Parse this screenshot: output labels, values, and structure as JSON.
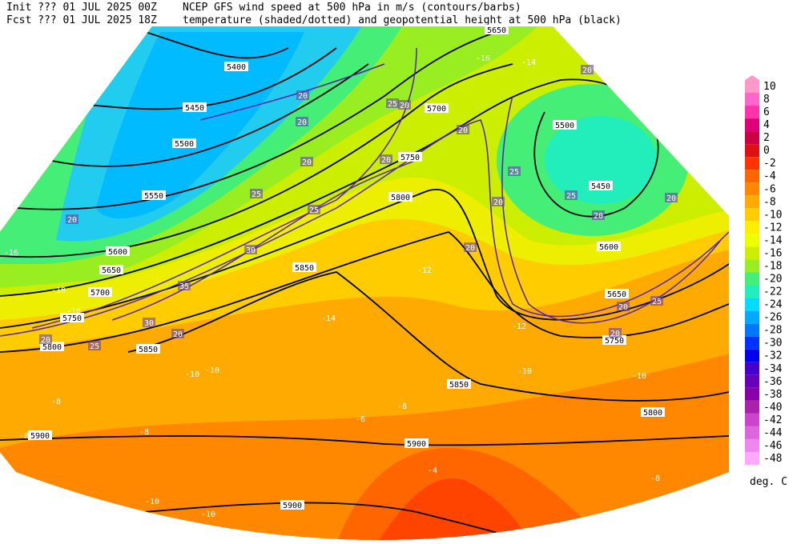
{
  "header": {
    "init": "Init  ??? 01 JUL 2025 00Z",
    "fcst": "Fcst ??? 01 JUL 2025 18Z",
    "line1": "NCEP GFS wind speed at 500 hPa in m/s (contours/barbs)",
    "line2": "temperature (shaded/dotted) and geopotential height at 500 hPa (black)"
  },
  "colorbar": {
    "unit": "deg. C",
    "levels": [
      "10",
      "8",
      "6",
      "4",
      "2",
      "0",
      "-2",
      "-4",
      "-6",
      "-8",
      "-10",
      "-12",
      "-14",
      "-16",
      "-18",
      "-20",
      "-22",
      "-24",
      "-26",
      "-28",
      "-30",
      "-32",
      "-34",
      "-36",
      "-38",
      "-40",
      "-42",
      "-44",
      "-46",
      "-48"
    ],
    "colors": [
      "#ff99cc",
      "#ff66cc",
      "#ff33aa",
      "#dd0077",
      "#cc0044",
      "#dd1111",
      "#ff3300",
      "#ff6600",
      "#ff8800",
      "#ffaa00",
      "#ffcc00",
      "#ffee00",
      "#eeff00",
      "#ccee00",
      "#99ee22",
      "#44ee77",
      "#22eebb",
      "#00ddff",
      "#00aaff",
      "#0077ff",
      "#0033ff",
      "#0000ee",
      "#4400cc",
      "#6600bb",
      "#8800aa",
      "#aa22aa",
      "#cc44cc",
      "#dd66dd",
      "#ee88ee",
      "#ffaaff"
    ]
  },
  "map_labels": {
    "heights": [
      "5400",
      "5450",
      "5500",
      "5550",
      "5600",
      "5650",
      "5700",
      "5750",
      "5800",
      "5850",
      "5900",
      "5650",
      "5700",
      "5750",
      "5800",
      "5850",
      "5500",
      "5450",
      "5600",
      "5650",
      "5750",
      "5800",
      "5850",
      "5900",
      "5900"
    ],
    "temperatures": [
      "-16",
      "-18",
      "-16",
      "-14",
      "-16",
      "-12",
      "-10",
      "-10",
      "-8",
      "-8",
      "-8",
      "-6",
      "-8",
      "-10",
      "-10",
      "-8",
      "-10",
      "-10",
      "-4",
      "-12",
      "-14"
    ],
    "wind_speeds": [
      "20",
      "20",
      "25",
      "20",
      "20",
      "20",
      "25",
      "25",
      "20",
      "20",
      "25",
      "20",
      "25",
      "20",
      "20",
      "20",
      "25",
      "20",
      "20",
      "30",
      "35",
      "30",
      "20",
      "25",
      "20",
      "20"
    ]
  }
}
